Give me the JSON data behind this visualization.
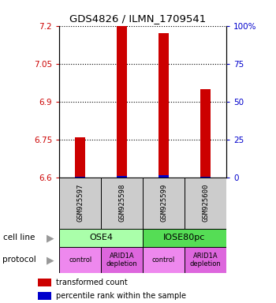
{
  "title": "GDS4826 / ILMN_1709541",
  "samples": [
    "GSM925597",
    "GSM925598",
    "GSM925599",
    "GSM925600"
  ],
  "red_bar_values": [
    6.758,
    7.2,
    7.17,
    6.95
  ],
  "blue_bar_values": [
    6.603,
    6.606,
    6.607,
    6.603
  ],
  "y_min": 6.6,
  "y_max": 7.2,
  "y_ticks_left": [
    6.6,
    6.75,
    6.9,
    7.05,
    7.2
  ],
  "y_ticks_right": [
    0,
    25,
    50,
    75,
    100
  ],
  "red_color": "#cc0000",
  "blue_color": "#0000cc",
  "cell_line_labels": [
    "OSE4",
    "IOSE80pc"
  ],
  "cell_line_colors": [
    "#aaffaa",
    "#55dd55"
  ],
  "protocol_labels": [
    "control",
    "ARID1A\ndepletion",
    "control",
    "ARID1A\ndepletion"
  ],
  "protocol_colors": [
    "#ee88ee",
    "#dd66dd",
    "#ee88ee",
    "#dd66dd"
  ],
  "legend_red": "transformed count",
  "legend_blue": "percentile rank within the sample",
  "sample_box_color": "#cccccc",
  "base_value": 6.6,
  "bar_width": 0.25
}
